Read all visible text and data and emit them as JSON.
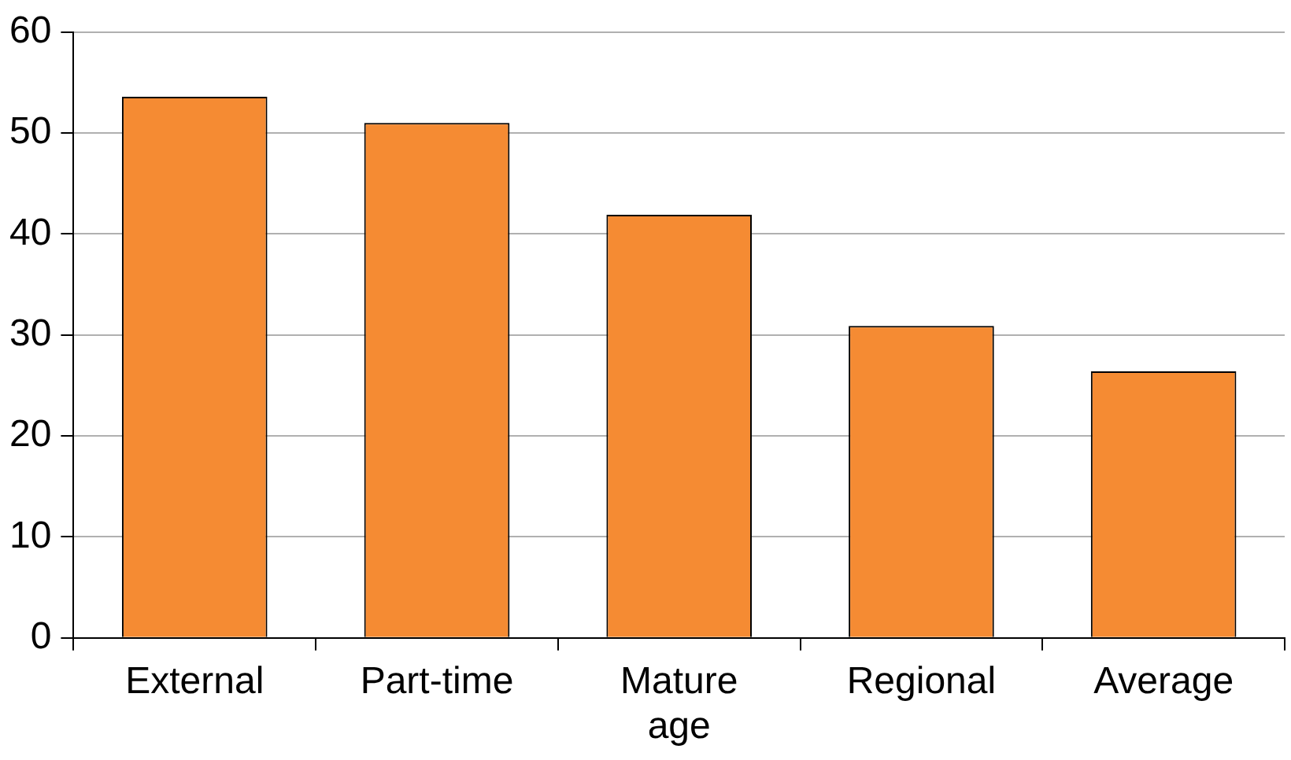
{
  "chart_data": {
    "type": "bar",
    "categories": [
      "External",
      "Part-time",
      "Mature age",
      "Regional",
      "Average"
    ],
    "values": [
      53.6,
      51.0,
      41.9,
      30.9,
      26.4
    ],
    "color": "#f58b33",
    "ylim": [
      0,
      60
    ],
    "yticks": [
      0,
      10,
      20,
      30,
      40,
      50,
      60
    ],
    "grid": "y"
  }
}
